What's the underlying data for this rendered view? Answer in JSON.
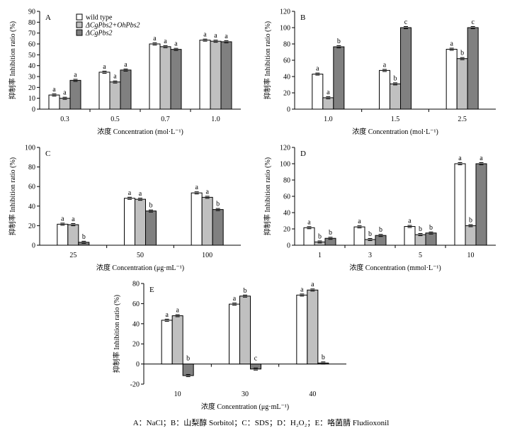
{
  "legend": [
    {
      "label": "wild type",
      "color": "#ffffff"
    },
    {
      "label": "ΔCgPbs2+OhPbs2",
      "color": "#c0c0c0"
    },
    {
      "label": "ΔCgPbs2",
      "color": "#808080"
    }
  ],
  "caption": "A：NaCl；B：山梨醇 Sorbitol；C：SDS；D：H₂O₂；E：咯菌腈 Fludioxonil",
  "chart_data": [
    {
      "panel": "A",
      "type": "bar",
      "ylabel": "抑制率 Inhibition ratio (%)",
      "xlabel": "浓度 Concentration (mol·L⁻¹)",
      "ylim": [
        0,
        90
      ],
      "yticks": [
        0,
        10,
        20,
        30,
        40,
        50,
        60,
        70,
        80,
        90
      ],
      "categories": [
        "0.3",
        "0.5",
        "0.7",
        "1.0"
      ],
      "series": [
        {
          "name": "wild type",
          "values": [
            13,
            34,
            60,
            63.5
          ],
          "labels": [
            "a",
            "a",
            "a",
            "a"
          ]
        },
        {
          "name": "ΔCgPbs2+OhPbs2",
          "values": [
            10,
            25,
            57.5,
            62.5
          ],
          "labels": [
            "a",
            "a",
            "a",
            "a"
          ]
        },
        {
          "name": "ΔCgPbs2",
          "values": [
            26.5,
            36,
            55,
            62
          ],
          "labels": [
            "a",
            "a",
            "a",
            "a"
          ]
        }
      ]
    },
    {
      "panel": "B",
      "type": "bar",
      "ylabel": "抑制率 Inhibition ratio (%)",
      "xlabel": "浓度 Concentration (mol·L⁻¹)",
      "ylim": [
        0,
        120
      ],
      "yticks": [
        0,
        20,
        40,
        60,
        80,
        100,
        120
      ],
      "categories": [
        "1.0",
        "1.5",
        "2.5"
      ],
      "series": [
        {
          "name": "wild type",
          "values": [
            43,
            47.5,
            73.5
          ],
          "labels": [
            "a",
            "a",
            "a"
          ]
        },
        {
          "name": "ΔCgPbs2+OhPbs2",
          "values": [
            14,
            31,
            62
          ],
          "labels": [
            "a",
            "b",
            "b"
          ]
        },
        {
          "name": "ΔCgPbs2",
          "values": [
            76.5,
            100,
            100
          ],
          "labels": [
            "b",
            "c",
            "c"
          ]
        }
      ]
    },
    {
      "panel": "C",
      "type": "bar",
      "ylabel": "抑制率 Inhibition ratio (%)",
      "xlabel": "浓度 Concentration (μg·mL⁻¹)",
      "ylim": [
        0,
        100
      ],
      "yticks": [
        0,
        20,
        40,
        60,
        80,
        100
      ],
      "categories": [
        "25",
        "50",
        "100"
      ],
      "series": [
        {
          "name": "wild type",
          "values": [
            21.5,
            48,
            53.5
          ],
          "labels": [
            "a",
            "a",
            "a"
          ]
        },
        {
          "name": "ΔCgPbs2+OhPbs2",
          "values": [
            21,
            47,
            49
          ],
          "labels": [
            "a",
            "a",
            "a"
          ]
        },
        {
          "name": "ΔCgPbs2",
          "values": [
            3,
            35,
            36.5
          ],
          "labels": [
            "b",
            "b",
            "b"
          ]
        }
      ]
    },
    {
      "panel": "D",
      "type": "bar",
      "ylabel": "抑制率 Inhibition ratio (%)",
      "xlabel": "浓度 Concentration (mmol·L⁻¹)",
      "ylim": [
        0,
        120
      ],
      "yticks": [
        0,
        20,
        40,
        60,
        80,
        100,
        120
      ],
      "categories": [
        "1",
        "3",
        "5",
        "10"
      ],
      "series": [
        {
          "name": "wild type",
          "values": [
            21.5,
            22.5,
            23,
            100
          ],
          "labels": [
            "a",
            "a",
            "a",
            "a"
          ]
        },
        {
          "name": "ΔCgPbs2+OhPbs2",
          "values": [
            4,
            7,
            13,
            24
          ],
          "labels": [
            "b",
            "b",
            "b",
            "b"
          ]
        },
        {
          "name": "ΔCgPbs2",
          "values": [
            8.5,
            12,
            15,
            100
          ],
          "labels": [
            "b",
            "b",
            "b",
            "a"
          ]
        }
      ]
    },
    {
      "panel": "E",
      "type": "bar",
      "ylabel": "抑制率 Inhibition ratio (%)",
      "xlabel": "浓度 Concentration (μg·mL⁻¹)",
      "ylim": [
        -20,
        80
      ],
      "yticks": [
        -20,
        0,
        20,
        40,
        60,
        80
      ],
      "categories": [
        "10",
        "30",
        "40"
      ],
      "series": [
        {
          "name": "wild type",
          "values": [
            43.5,
            59.5,
            68.5
          ],
          "labels": [
            "a",
            "a",
            "a"
          ]
        },
        {
          "name": "ΔCgPbs2+OhPbs2",
          "values": [
            48,
            67.5,
            73.5
          ],
          "labels": [
            "a",
            "b",
            "a"
          ]
        },
        {
          "name": "ΔCgPbs2",
          "values": [
            -11.5,
            -5,
            1
          ],
          "labels": [
            "b",
            "c",
            "b"
          ]
        }
      ]
    }
  ]
}
